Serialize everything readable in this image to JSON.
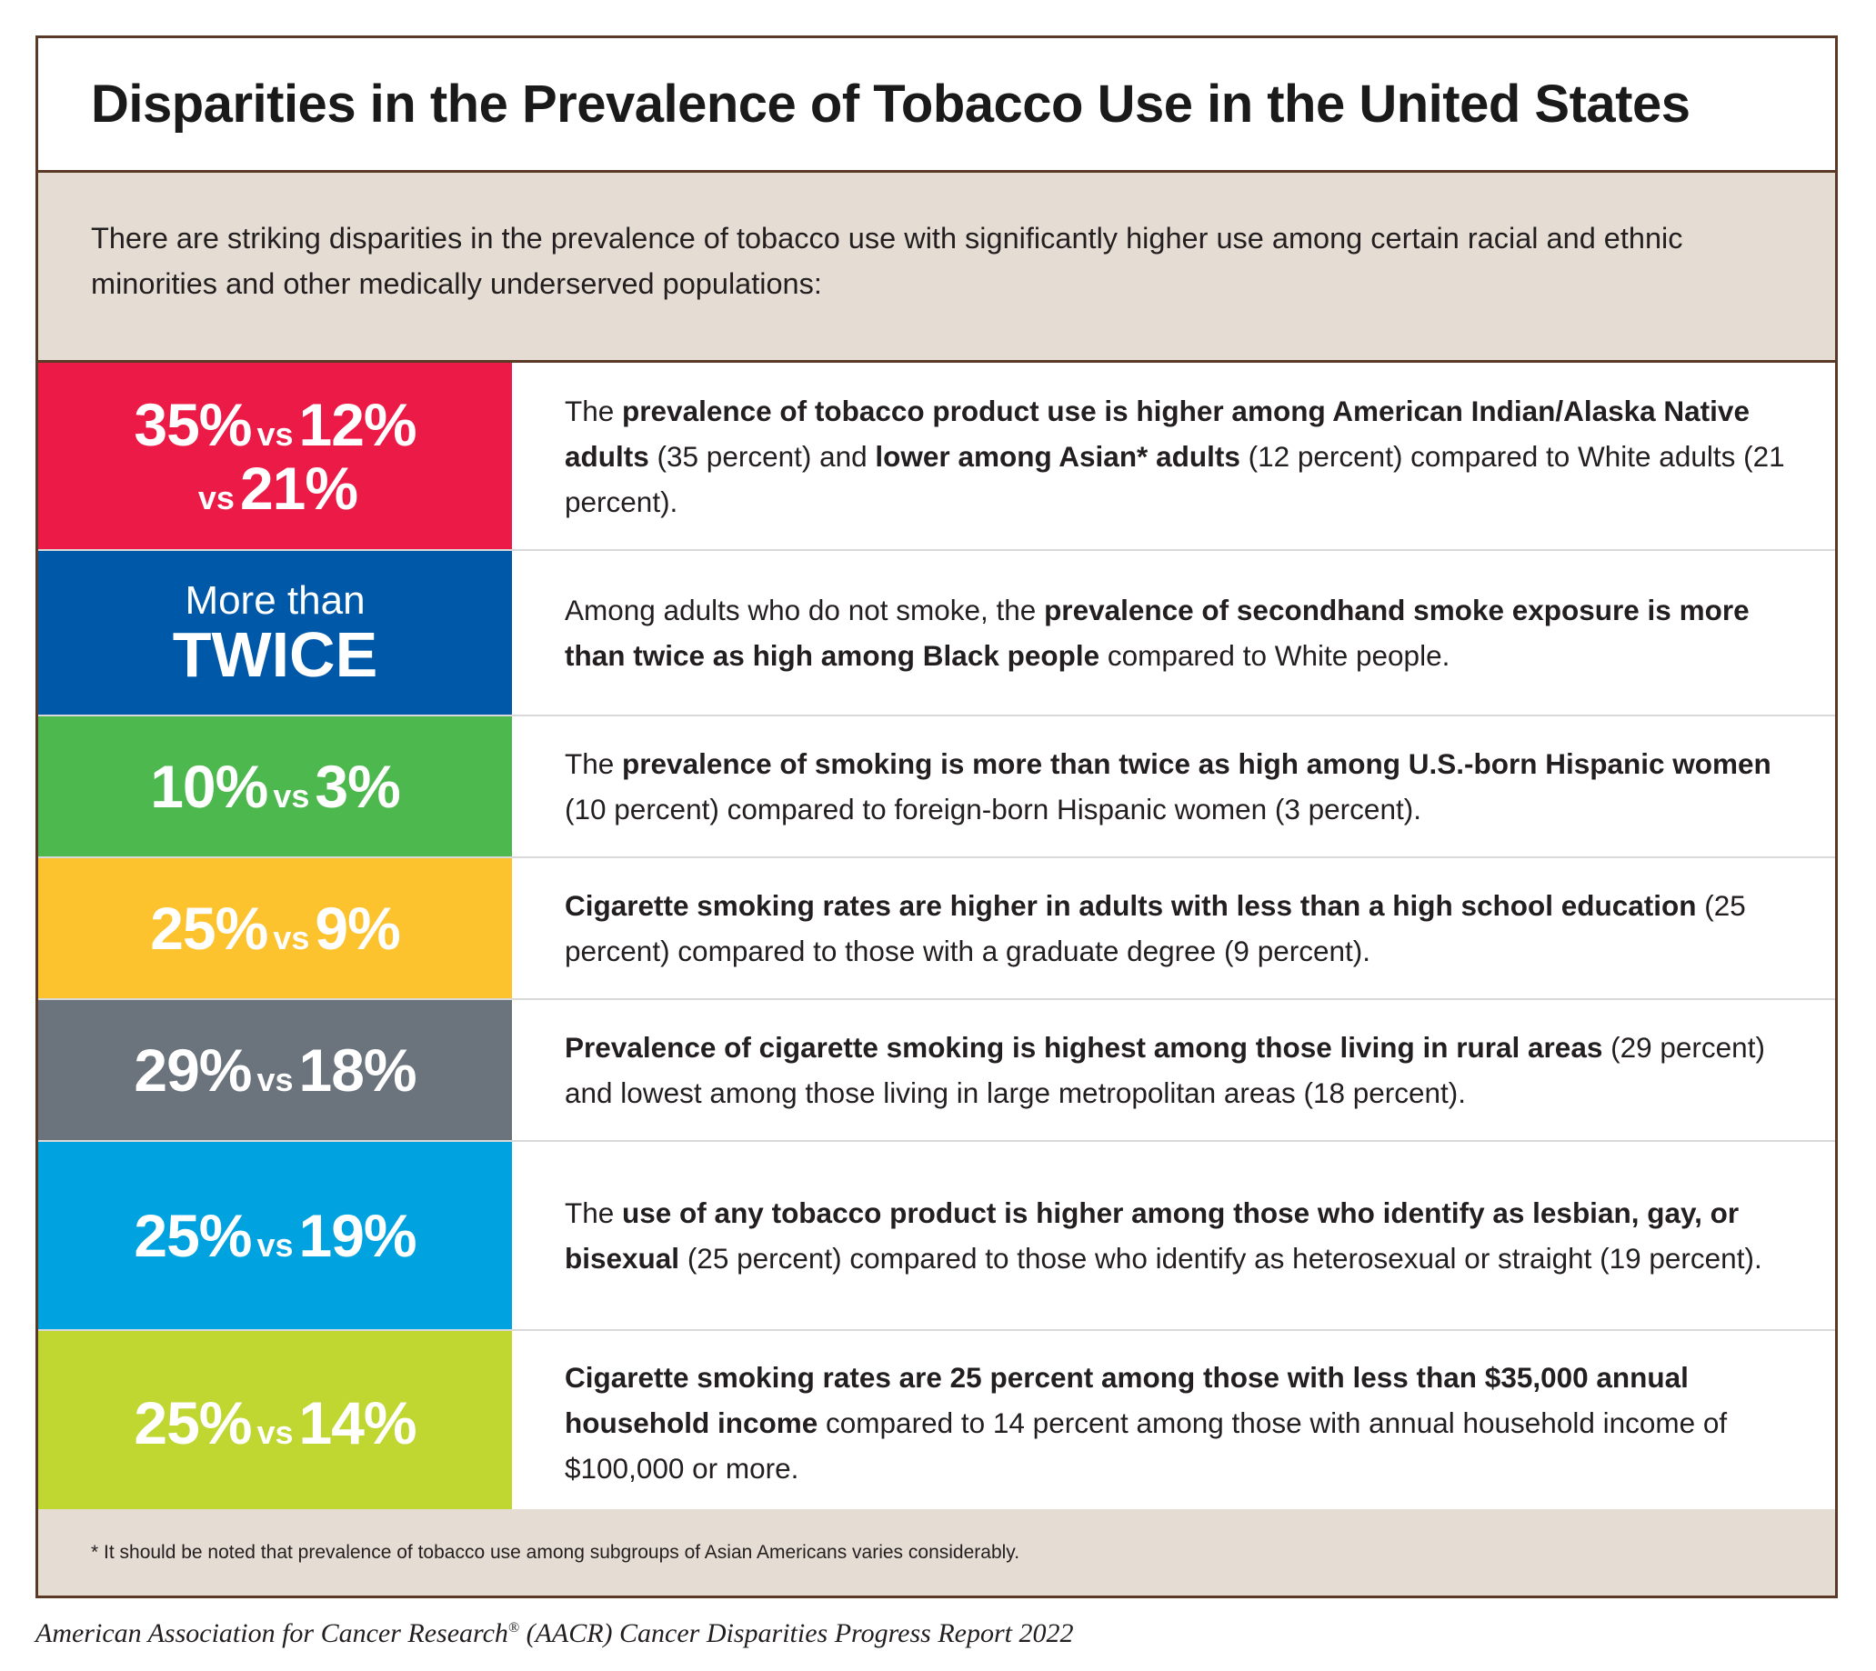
{
  "title": "Disparities in the Prevalence of Tobacco Use in the United States",
  "intro": "There are striking disparities in the prevalence of tobacco use with significantly higher use among certain racial and ethnic minorities and other medically underserved populations:",
  "rows": [
    {
      "color": "#ec1a47",
      "stat_a": "35%",
      "vs_1": "vs",
      "stat_b": "12%",
      "vs_2": "vs",
      "stat_c": "21%",
      "d0": "The ",
      "d1": "prevalence of tobacco product use is higher among American Indian/Alaska Native adults",
      "d2": " (35 percent) and ",
      "d3": "lower among Asian* adults",
      "d4": " (12 percent) compared to White adults (21 percent)."
    },
    {
      "color": "#0058a9",
      "stat_small": "More than",
      "stat_big": "TWICE",
      "d0": "Among adults who do not smoke, the ",
      "d1": "prevalence of secondhand smoke exposure is more than twice as high among Black people",
      "d2": " compared to White people."
    },
    {
      "color": "#4db84e",
      "stat_a": "10%",
      "vs_1": "vs",
      "stat_b": "3%",
      "d0": "The ",
      "d1": "prevalence of smoking is more than twice as high among U.S.-born Hispanic women",
      "d2": " (10 percent) compared to foreign-born Hispanic women (3 percent)."
    },
    {
      "color": "#fdc32e",
      "stat_a": "25%",
      "vs_1": "vs",
      "stat_b": "9%",
      "d1": "Cigarette smoking rates are higher in adults with less than a high school education",
      "d2": " (25 percent) compared to those with a graduate degree (9 percent)."
    },
    {
      "color": "#6b737c",
      "stat_a": "29%",
      "vs_1": "vs",
      "stat_b": "18%",
      "d1": "Prevalence of cigarette smoking is highest among those living in rural areas",
      "d2": " (29 percent) and lowest among those living in large metropolitan areas (18 percent)."
    },
    {
      "color": "#00a2e0",
      "stat_a": "25%",
      "vs_1": "vs",
      "stat_b": "19%",
      "d0": "The ",
      "d1": "use of any tobacco product is higher among those who identify as lesbian, gay, or bisexual",
      "d2": " (25 percent) compared to those who identify as heterosexual or straight (19 percent)."
    },
    {
      "color": "#c0d631",
      "stat_a": "25%",
      "vs_1": "vs",
      "stat_b": "14%",
      "d1": "Cigarette smoking rates are 25 percent among those with less than $35,000 annual household income",
      "d2": " compared to 14 percent among those with annual household income of $100,000 or more."
    }
  ],
  "footnote": "* It should be noted that prevalence of tobacco use among subgroups of Asian Americans varies considerably.",
  "source": "American Association for Cancer Research",
  "source_reg": "®",
  "source_rest": " (AACR) Cancer Disparities Progress Report 2022"
}
